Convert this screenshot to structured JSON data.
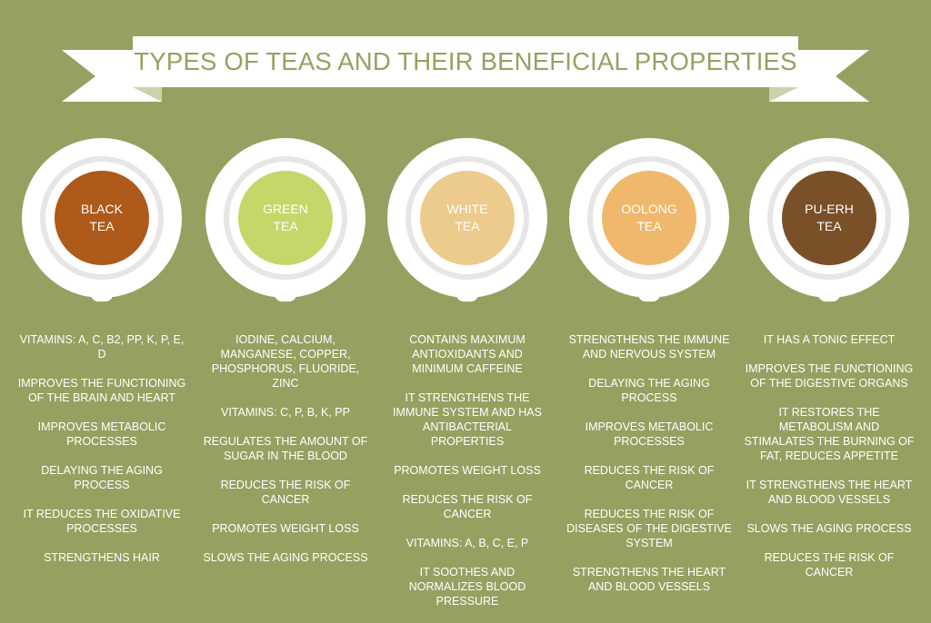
{
  "title": "TYPES OF TEAS AND THEIR BENEFICIAL PROPERTIES",
  "colors": {
    "background": "#98a061",
    "ribbon": "#ffffff",
    "ribbon_shadow": "#cdd1ad",
    "saucer_outer": "#ffffff",
    "saucer_inner": "#e6e6e6"
  },
  "teas": [
    {
      "name": "BLACK\nTEA",
      "color": "#ad5a1a",
      "benefits": [
        "VITAMINS: A, C, B2, PP, K, P, E, D",
        "IMPROVES THE FUNCTIONING OF THE BRAIN AND HEART",
        "IMPROVES METABOLIC PROCESSES",
        "DELAYING THE AGING PROCESS",
        "IT REDUCES THE OXIDATIVE PROCESSES",
        "STRENGTHENS HAIR"
      ]
    },
    {
      "name": "GREEN\nTEA",
      "color": "#c6d76a",
      "benefits": [
        "IODINE, CALCIUM, MANGANESE, COPPER, PHOSPHORUS, FLUORIDE, ZINC",
        "VITAMINS: C, P, B, K, PP",
        "REGULATES THE AMOUNT OF SUGAR IN THE BLOOD",
        "REDUCES THE RISK OF CANCER",
        "PROMOTES WEIGHT LOSS",
        "SLOWS THE AGING PROCESS"
      ]
    },
    {
      "name": "WHITE\nTEA",
      "color": "#eccb8d",
      "benefits": [
        "CONTAINS MAXIMUM ANTIOXIDANTS AND MINIMUM  CAFFEINE",
        "IT STRENGTHENS THE IMMUNE SYSTEM AND HAS ANTIBACTERIAL PROPERTIES",
        "PROMOTES WEIGHT LOSS",
        "REDUCES THE RISK OF CANCER",
        "VITAMINS: A, B, C, E, P",
        "IT SOOTHES AND NORMALIZES BLOOD PRESSURE"
      ]
    },
    {
      "name": "OOLONG\nTEA",
      "color": "#f0b86c",
      "benefits": [
        "STRENGTHENS THE IMMUNE AND NERVOUS SYSTEM",
        "DELAYING THE AGING PROCESS",
        "IMPROVES METABOLIC PROCESSES",
        "REDUCES THE RISK OF CANCER",
        "REDUCES THE RISK OF DISEASES OF THE DIGESTIVE SYSTEM",
        "STRENGTHENS THE HEART AND BLOOD VESSELS"
      ]
    },
    {
      "name": "PU-ERH\nTEA",
      "color": "#7a5029",
      "benefits": [
        "IT HAS A TONIC EFFECT",
        "IMPROVES THE FUNCTIONING OF THE DIGESTIVE ORGANS",
        "IT RESTORES THE METABOLISM AND STIMALATES THE BURNING OF FAT, REDUCES APPETITE",
        "IT STRENGTHENS THE HEART AND BLOOD VESSELS",
        "SLOWS THE AGING PROCESS",
        "REDUCES THE RISK OF CANCER"
      ]
    }
  ]
}
